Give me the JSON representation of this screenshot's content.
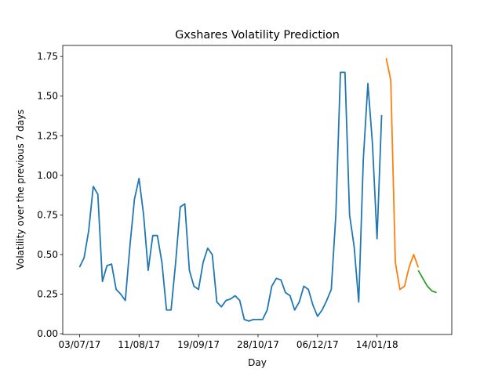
{
  "chart_data": {
    "type": "line",
    "title": "Gxshares Volatility Prediction",
    "xlabel": "Day",
    "ylabel": "Volatility over the previous 7 days",
    "x": [
      "2017-07-03",
      "2017-07-06",
      "2017-07-09",
      "2017-07-12",
      "2017-07-15",
      "2017-07-18",
      "2017-07-21",
      "2017-07-24",
      "2017-07-27",
      "2017-07-30",
      "2017-08-02",
      "2017-08-05",
      "2017-08-08",
      "2017-08-11",
      "2017-08-14",
      "2017-08-17",
      "2017-08-20",
      "2017-08-23",
      "2017-08-26",
      "2017-08-29",
      "2017-09-01",
      "2017-09-04",
      "2017-09-07",
      "2017-09-10",
      "2017-09-13",
      "2017-09-16",
      "2017-09-19",
      "2017-09-22",
      "2017-09-25",
      "2017-09-28",
      "2017-10-01",
      "2017-10-04",
      "2017-10-07",
      "2017-10-10",
      "2017-10-13",
      "2017-10-16",
      "2017-10-19",
      "2017-10-22",
      "2017-10-25",
      "2017-10-28",
      "2017-10-31",
      "2017-11-03",
      "2017-11-06",
      "2017-11-09",
      "2017-11-12",
      "2017-11-15",
      "2017-11-18",
      "2017-11-21",
      "2017-11-24",
      "2017-11-27",
      "2017-11-30",
      "2017-12-03",
      "2017-12-06",
      "2017-12-09",
      "2017-12-12",
      "2017-12-15",
      "2017-12-18",
      "2017-12-21",
      "2017-12-24",
      "2017-12-27",
      "2017-12-30",
      "2018-01-02",
      "2018-01-05",
      "2018-01-08",
      "2018-01-11",
      "2018-01-14",
      "2018-01-17",
      "2018-01-20",
      "2018-01-23",
      "2018-01-26",
      "2018-01-29",
      "2018-02-01",
      "2018-02-04",
      "2018-02-07",
      "2018-02-10",
      "2018-02-13",
      "2018-02-16",
      "2018-02-19",
      "2018-02-22"
    ],
    "series": [
      {
        "color": "#1f77b4",
        "values": [
          0.42,
          0.48,
          0.65,
          0.93,
          0.88,
          0.33,
          0.43,
          0.44,
          0.28,
          0.25,
          0.21,
          0.55,
          0.85,
          0.98,
          0.75,
          0.4,
          0.62,
          0.62,
          0.45,
          0.15,
          0.15,
          0.45,
          0.8,
          0.82,
          0.4,
          0.3,
          0.28,
          0.45,
          0.54,
          0.5,
          0.2,
          0.17,
          0.21,
          0.22,
          0.24,
          0.21,
          0.09,
          0.08,
          0.09,
          0.09,
          0.09,
          0.15,
          0.3,
          0.35,
          0.34,
          0.26,
          0.24,
          0.15,
          0.2,
          0.3,
          0.28,
          0.18,
          0.11,
          0.15,
          0.21,
          0.28,
          0.75,
          1.65,
          1.65,
          0.75,
          0.55,
          0.2,
          1.1,
          1.58,
          1.2,
          0.6,
          1.38,
          null,
          null,
          null,
          null,
          null,
          null,
          null,
          null,
          null,
          null,
          null,
          null
        ]
      },
      {
        "color": "#ff7f0e",
        "values": [
          null,
          null,
          null,
          null,
          null,
          null,
          null,
          null,
          null,
          null,
          null,
          null,
          null,
          null,
          null,
          null,
          null,
          null,
          null,
          null,
          null,
          null,
          null,
          null,
          null,
          null,
          null,
          null,
          null,
          null,
          null,
          null,
          null,
          null,
          null,
          null,
          null,
          null,
          null,
          null,
          null,
          null,
          null,
          null,
          null,
          null,
          null,
          null,
          null,
          null,
          null,
          null,
          null,
          null,
          null,
          null,
          null,
          null,
          null,
          null,
          null,
          null,
          null,
          null,
          null,
          null,
          null,
          1.74,
          1.6,
          0.45,
          0.28,
          0.3,
          0.42,
          0.5,
          0.42,
          null,
          null,
          null,
          null
        ]
      },
      {
        "color": "#2ca02c",
        "values": [
          null,
          null,
          null,
          null,
          null,
          null,
          null,
          null,
          null,
          null,
          null,
          null,
          null,
          null,
          null,
          null,
          null,
          null,
          null,
          null,
          null,
          null,
          null,
          null,
          null,
          null,
          null,
          null,
          null,
          null,
          null,
          null,
          null,
          null,
          null,
          null,
          null,
          null,
          null,
          null,
          null,
          null,
          null,
          null,
          null,
          null,
          null,
          null,
          null,
          null,
          null,
          null,
          null,
          null,
          null,
          null,
          null,
          null,
          null,
          null,
          null,
          null,
          null,
          null,
          null,
          null,
          null,
          null,
          null,
          null,
          null,
          null,
          null,
          null,
          0.4,
          0.35,
          0.3,
          0.27,
          0.26
        ]
      }
    ],
    "xlim": [
      "2017-06-22",
      "2018-03-04"
    ],
    "xticks": [
      {
        "value": "2017-07-03",
        "label": "03/07/17"
      },
      {
        "value": "2017-08-11",
        "label": "11/08/17"
      },
      {
        "value": "2017-09-19",
        "label": "19/09/17"
      },
      {
        "value": "2017-10-28",
        "label": "28/10/17"
      },
      {
        "value": "2017-12-06",
        "label": "06/12/17"
      },
      {
        "value": "2018-01-14",
        "label": "14/01/18"
      }
    ],
    "ylim": [
      -0.0045,
      1.82
    ],
    "yticks": [
      {
        "value": 0,
        "label": "0.00"
      },
      {
        "value": 0.25,
        "label": "0.25"
      },
      {
        "value": 0.5,
        "label": "0.50"
      },
      {
        "value": 0.75,
        "label": "0.75"
      },
      {
        "value": 1,
        "label": "1.00"
      },
      {
        "value": 1.25,
        "label": "1.25"
      },
      {
        "value": 1.5,
        "label": "1.50"
      },
      {
        "value": 1.75,
        "label": "1.75"
      }
    ]
  }
}
